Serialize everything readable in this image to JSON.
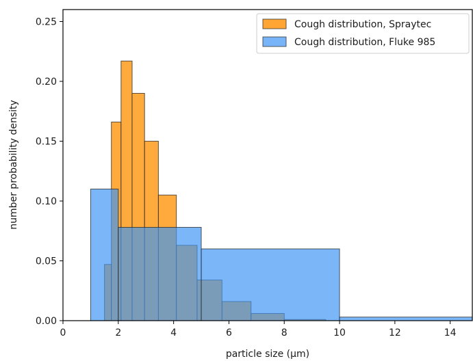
{
  "chart_data": {
    "type": "bar",
    "title": "",
    "xlabel": "particle size (μm)",
    "ylabel": "number probability density",
    "xlim": [
      0,
      14.8
    ],
    "ylim": [
      0,
      0.26
    ],
    "xticks": [
      0,
      2,
      4,
      6,
      8,
      10,
      12,
      14
    ],
    "yticks": [
      0.0,
      0.05,
      0.1,
      0.15,
      0.2,
      0.25
    ],
    "legend_position": "top-right",
    "grid": false,
    "series": [
      {
        "name": "Cough distribution, Spraytec",
        "color": "#ffa533",
        "bins": [
          {
            "x0": 1.5,
            "x1": 1.75,
            "y": 0.047
          },
          {
            "x0": 1.75,
            "x1": 2.1,
            "y": 0.166
          },
          {
            "x0": 2.1,
            "x1": 2.5,
            "y": 0.217
          },
          {
            "x0": 2.5,
            "x1": 2.95,
            "y": 0.19
          },
          {
            "x0": 2.95,
            "x1": 3.45,
            "y": 0.15
          },
          {
            "x0": 3.45,
            "x1": 4.1,
            "y": 0.105
          },
          {
            "x0": 4.1,
            "x1": 4.85,
            "y": 0.063
          },
          {
            "x0": 4.85,
            "x1": 5.75,
            "y": 0.034
          },
          {
            "x0": 5.75,
            "x1": 6.8,
            "y": 0.016
          },
          {
            "x0": 6.8,
            "x1": 8.0,
            "y": 0.006
          },
          {
            "x0": 8.0,
            "x1": 9.5,
            "y": 0.001
          }
        ]
      },
      {
        "name": "Cough distribution, Fluke 985",
        "color": "#3d95f5",
        "bins": [
          {
            "x0": 1.0,
            "x1": 2.0,
            "y": 0.11
          },
          {
            "x0": 2.0,
            "x1": 5.0,
            "y": 0.078
          },
          {
            "x0": 5.0,
            "x1": 10.0,
            "y": 0.06
          },
          {
            "x0": 10.0,
            "x1": 14.8,
            "y": 0.003
          }
        ]
      }
    ]
  }
}
